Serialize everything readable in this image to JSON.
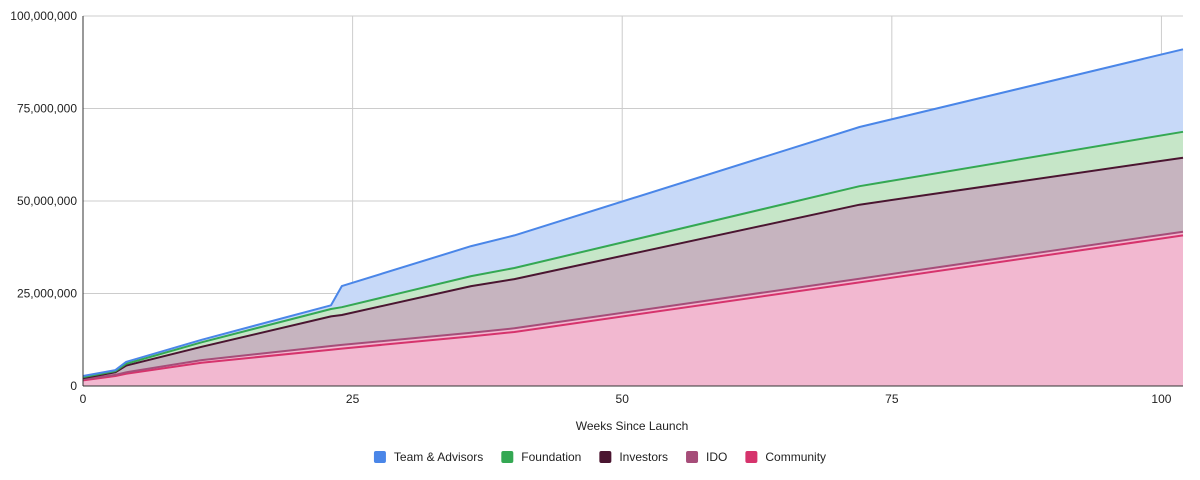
{
  "chart_data": {
    "type": "area",
    "stacked": true,
    "title": "",
    "xlabel": "Weeks Since Launch",
    "ylabel": "",
    "xlim": [
      0,
      102
    ],
    "ylim": [
      0,
      100000000
    ],
    "x_ticks": [
      0,
      25,
      50,
      75,
      100
    ],
    "x_tick_labels": [
      "0",
      "25",
      "50",
      "75",
      "100"
    ],
    "y_ticks": [
      0,
      25000000,
      50000000,
      75000000,
      100000000
    ],
    "y_tick_labels": [
      "0",
      "25,000,000",
      "50,000,000",
      "75,000,000",
      "100,000,000"
    ],
    "grid": true,
    "legend_position": "bottom",
    "x": [
      0,
      3,
      4,
      11,
      23,
      24,
      36,
      40,
      72,
      102
    ],
    "series": [
      {
        "name": "Community",
        "line_color": "#d6336c",
        "fill_color": "#f2b8d0",
        "values": [
          1500000,
          2700000,
          3300000,
          6300000,
          9800000,
          10100000,
          13400000,
          14600000,
          28000000,
          40700000
        ]
      },
      {
        "name": "IDO",
        "line_color": "#a64d79",
        "fill_color": "#f2b8d0",
        "values": [
          300000,
          300000,
          400000,
          700000,
          1000000,
          1000000,
          1000000,
          1000000,
          1000000,
          1000000
        ]
      },
      {
        "name": "Investors",
        "line_color": "#4a1530",
        "fill_color": "#c6b4bf",
        "values": [
          300000,
          700000,
          1800000,
          3600000,
          8000000,
          8100000,
          12600000,
          13300000,
          20000000,
          20000000
        ]
      },
      {
        "name": "Foundation",
        "line_color": "#34a853",
        "fill_color": "#c6e6c8",
        "values": [
          300000,
          300000,
          500000,
          1200000,
          2000000,
          2100000,
          2700000,
          3000000,
          5000000,
          7000000
        ]
      },
      {
        "name": "Team & Advisors",
        "line_color": "#4a86e8",
        "fill_color": "#c7d9f8",
        "values": [
          300000,
          300000,
          500000,
          700000,
          1000000,
          5700000,
          8100000,
          8800000,
          16000000,
          22300000
        ]
      }
    ],
    "legend_order": [
      "Team & Advisors",
      "Foundation",
      "Investors",
      "IDO",
      "Community"
    ]
  }
}
